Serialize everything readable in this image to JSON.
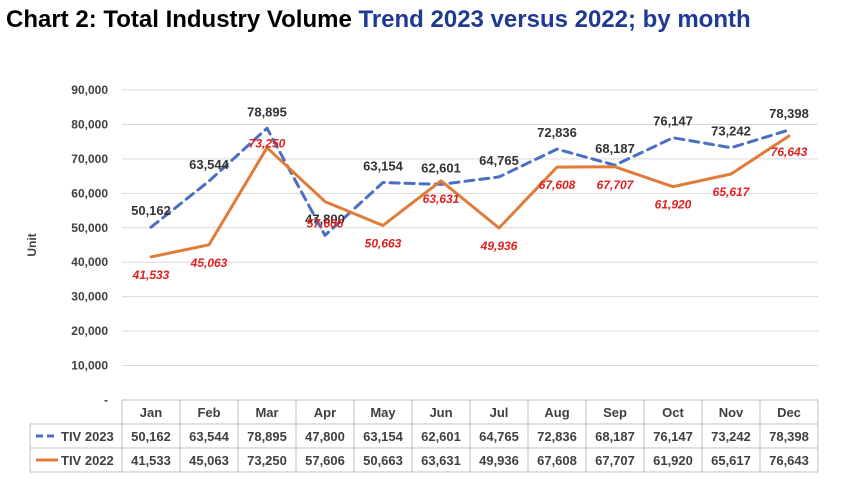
{
  "title": {
    "part1": "Chart 2: Total Industry Volume",
    "part2": "Trend 2023 versus 2022; by month"
  },
  "colors": {
    "tiv2023": "#4a6fc2",
    "tiv2022": "#e07b39",
    "label2023": "#333333",
    "label2022": "#e02020",
    "grid": "#d9d9d9",
    "title_accent": "#1f3a93"
  },
  "chart_data": {
    "type": "line",
    "title": "Chart 2: Total Industry Volume Trend 2023 versus 2022; by month",
    "ylabel": "Unit",
    "ylim": [
      0,
      90000
    ],
    "yticks": [
      "-",
      "10,000",
      "20,000",
      "30,000",
      "40,000",
      "50,000",
      "60,000",
      "70,000",
      "80,000",
      "90,000"
    ],
    "grid": true,
    "categories": [
      "Jan",
      "Feb",
      "Mar",
      "Apr",
      "May",
      "Jun",
      "Jul",
      "Aug",
      "Sep",
      "Oct",
      "Nov",
      "Dec"
    ],
    "series": [
      {
        "name": "TIV 2023",
        "style": "dashed",
        "values": [
          50162,
          63544,
          78895,
          47800,
          63154,
          62601,
          64765,
          72836,
          68187,
          76147,
          73242,
          78398
        ],
        "labels": [
          "50,162",
          "63,544",
          "78,895",
          "47,800",
          "63,154",
          "62,601",
          "64,765",
          "72,836",
          "68,187",
          "76,147",
          "73,242",
          "78,398"
        ]
      },
      {
        "name": "TIV 2022",
        "style": "solid",
        "values": [
          41533,
          45063,
          73250,
          57606,
          50663,
          63631,
          49936,
          67608,
          67707,
          61920,
          65617,
          76643
        ],
        "labels": [
          "41,533",
          "45,063",
          "73,250",
          "57,606",
          "50,663",
          "63,631",
          "49,936",
          "67,608",
          "67,707",
          "61,920",
          "65,617",
          "76,643"
        ]
      }
    ],
    "table": true
  }
}
